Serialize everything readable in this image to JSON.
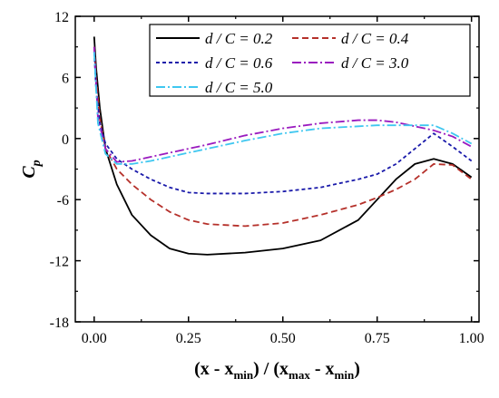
{
  "chart_data": {
    "type": "line",
    "xlabel": {
      "parts": [
        "(x - x",
        "min",
        ") / (x",
        "max",
        " - x",
        "min",
        ")"
      ]
    },
    "ylabel": {
      "main": "C",
      "sub": "p"
    },
    "xlim": [
      -0.05,
      1.02
    ],
    "ylim": [
      -18,
      12
    ],
    "xticks": [
      0.0,
      0.25,
      0.5,
      0.75,
      1.0
    ],
    "xtick_labels": [
      "0.00",
      "0.25",
      "0.50",
      "0.75",
      "1.00"
    ],
    "yticks": [
      -18,
      -12,
      -6,
      0,
      6,
      12
    ],
    "ytick_labels": [
      "-18",
      "-12",
      "-6",
      "0",
      "6",
      "12"
    ],
    "grid": false,
    "legend_placement": "top-right",
    "series": [
      {
        "name": "d / C = 0.2",
        "color": "#000000",
        "dash": "solid",
        "points": [
          [
            0.0,
            10.0
          ],
          [
            0.005,
            7.0
          ],
          [
            0.015,
            3.0
          ],
          [
            0.03,
            -1.0
          ],
          [
            0.06,
            -4.5
          ],
          [
            0.1,
            -7.5
          ],
          [
            0.15,
            -9.5
          ],
          [
            0.2,
            -10.8
          ],
          [
            0.25,
            -11.3
          ],
          [
            0.3,
            -11.4
          ],
          [
            0.4,
            -11.2
          ],
          [
            0.5,
            -10.8
          ],
          [
            0.6,
            -10.0
          ],
          [
            0.7,
            -8.0
          ],
          [
            0.75,
            -6.0
          ],
          [
            0.8,
            -4.0
          ],
          [
            0.85,
            -2.5
          ],
          [
            0.9,
            -2.0
          ],
          [
            0.95,
            -2.5
          ],
          [
            1.0,
            -3.8
          ]
        ]
      },
      {
        "name": "d / C = 0.4",
        "color": "#b5302a",
        "dash": "dash",
        "points": [
          [
            0.0,
            9.0
          ],
          [
            0.005,
            6.0
          ],
          [
            0.015,
            2.0
          ],
          [
            0.03,
            -1.0
          ],
          [
            0.06,
            -3.0
          ],
          [
            0.1,
            -4.5
          ],
          [
            0.15,
            -6.0
          ],
          [
            0.2,
            -7.2
          ],
          [
            0.25,
            -8.0
          ],
          [
            0.3,
            -8.4
          ],
          [
            0.4,
            -8.6
          ],
          [
            0.5,
            -8.3
          ],
          [
            0.6,
            -7.5
          ],
          [
            0.7,
            -6.5
          ],
          [
            0.75,
            -5.8
          ],
          [
            0.8,
            -5.0
          ],
          [
            0.85,
            -4.0
          ],
          [
            0.9,
            -2.5
          ],
          [
            0.95,
            -2.6
          ],
          [
            1.0,
            -4.0
          ]
        ]
      },
      {
        "name": "d / C = 0.6",
        "color": "#1a1aaa",
        "dash": "short",
        "points": [
          [
            0.0,
            8.5
          ],
          [
            0.005,
            5.0
          ],
          [
            0.015,
            1.5
          ],
          [
            0.03,
            -0.5
          ],
          [
            0.06,
            -2.0
          ],
          [
            0.1,
            -3.0
          ],
          [
            0.15,
            -4.0
          ],
          [
            0.2,
            -4.8
          ],
          [
            0.25,
            -5.3
          ],
          [
            0.3,
            -5.4
          ],
          [
            0.4,
            -5.4
          ],
          [
            0.5,
            -5.2
          ],
          [
            0.6,
            -4.8
          ],
          [
            0.7,
            -4.0
          ],
          [
            0.75,
            -3.5
          ],
          [
            0.8,
            -2.5
          ],
          [
            0.85,
            -1.0
          ],
          [
            0.9,
            0.5
          ],
          [
            0.95,
            -0.8
          ],
          [
            1.0,
            -2.2
          ]
        ]
      },
      {
        "name": "d / C = 3.0",
        "color": "#9a1bbf",
        "dash": "dashdot",
        "points": [
          [
            0.0,
            9.0
          ],
          [
            0.01,
            2.0
          ],
          [
            0.03,
            -1.0
          ],
          [
            0.06,
            -2.3
          ],
          [
            0.1,
            -2.2
          ],
          [
            0.15,
            -1.8
          ],
          [
            0.2,
            -1.4
          ],
          [
            0.25,
            -1.0
          ],
          [
            0.3,
            -0.6
          ],
          [
            0.4,
            0.3
          ],
          [
            0.5,
            1.0
          ],
          [
            0.6,
            1.5
          ],
          [
            0.7,
            1.8
          ],
          [
            0.75,
            1.8
          ],
          [
            0.8,
            1.6
          ],
          [
            0.85,
            1.2
          ],
          [
            0.9,
            0.8
          ],
          [
            0.95,
            0.2
          ],
          [
            1.0,
            -0.8
          ]
        ]
      },
      {
        "name": "d / C = 5.0",
        "color": "#3fc7f0",
        "dash": "dashdot",
        "points": [
          [
            0.0,
            8.5
          ],
          [
            0.01,
            1.5
          ],
          [
            0.03,
            -1.5
          ],
          [
            0.06,
            -2.5
          ],
          [
            0.1,
            -2.5
          ],
          [
            0.15,
            -2.2
          ],
          [
            0.2,
            -1.8
          ],
          [
            0.25,
            -1.4
          ],
          [
            0.3,
            -1.0
          ],
          [
            0.4,
            -0.2
          ],
          [
            0.5,
            0.5
          ],
          [
            0.6,
            1.0
          ],
          [
            0.7,
            1.2
          ],
          [
            0.75,
            1.3
          ],
          [
            0.8,
            1.3
          ],
          [
            0.85,
            1.3
          ],
          [
            0.9,
            1.3
          ],
          [
            0.95,
            0.5
          ],
          [
            1.0,
            -0.5
          ]
        ]
      }
    ]
  }
}
